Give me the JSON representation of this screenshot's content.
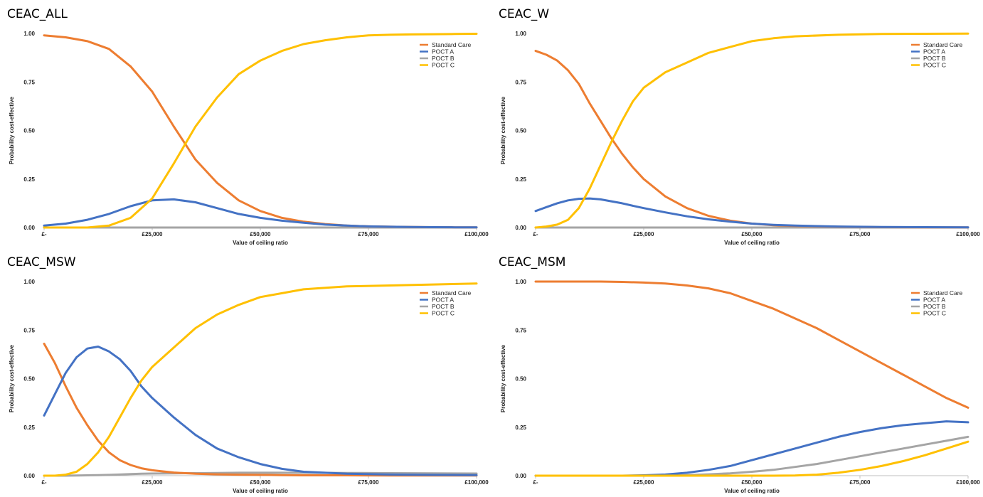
{
  "chart_data": [
    {
      "panel_title": "CEAC_ALL",
      "type": "line",
      "xlabel": "Value of ceiling ratio",
      "ylabel": "Probability cost-effective",
      "xlim": [
        0,
        100000
      ],
      "ylim": [
        0,
        1
      ],
      "x_tick_values": [
        0,
        25000,
        50000,
        75000,
        100000
      ],
      "x_tick_labels": [
        "£-",
        "£25,000",
        "£50,000",
        "£75,000",
        "£100,000"
      ],
      "y_tick_values": [
        0,
        0.25,
        0.5,
        0.75,
        1
      ],
      "y_tick_labels": [
        "0.00",
        "0.25",
        "0.50",
        "0.75",
        "1.00"
      ],
      "legend_position": "top-right",
      "x": [
        0,
        5000,
        10000,
        15000,
        20000,
        25000,
        30000,
        35000,
        40000,
        45000,
        50000,
        55000,
        60000,
        65000,
        70000,
        75000,
        80000,
        85000,
        90000,
        95000,
        100000
      ],
      "series": [
        {
          "name": "Standard Care",
          "color": "#ED7D31",
          "values": [
            0.99,
            0.98,
            0.96,
            0.92,
            0.83,
            0.7,
            0.52,
            0.35,
            0.23,
            0.14,
            0.085,
            0.05,
            0.03,
            0.018,
            0.01,
            0.006,
            0.004,
            0.003,
            0.002,
            0.001,
            0.001
          ]
        },
        {
          "name": "POCT A",
          "color": "#4472C4",
          "values": [
            0.01,
            0.02,
            0.04,
            0.07,
            0.11,
            0.14,
            0.145,
            0.13,
            0.1,
            0.07,
            0.05,
            0.035,
            0.025,
            0.015,
            0.01,
            0.006,
            0.004,
            0.003,
            0.002,
            0.001,
            0.001
          ]
        },
        {
          "name": "POCT B",
          "color": "#A5A5A5",
          "values": [
            0,
            0,
            0,
            0,
            0,
            0,
            0,
            0,
            0,
            0,
            0,
            0,
            0,
            0,
            0,
            0,
            0,
            0,
            0,
            0,
            0
          ]
        },
        {
          "name": "POCT C",
          "color": "#FFC000",
          "values": [
            0,
            0,
            0,
            0.01,
            0.05,
            0.15,
            0.33,
            0.52,
            0.67,
            0.79,
            0.86,
            0.91,
            0.945,
            0.965,
            0.98,
            0.99,
            0.993,
            0.995,
            0.996,
            0.997,
            0.998
          ]
        }
      ]
    },
    {
      "panel_title": "CEAC_W",
      "type": "line",
      "xlabel": "Value of ceiling ratio",
      "ylabel": "Probability cost-effective",
      "xlim": [
        0,
        100000
      ],
      "ylim": [
        0,
        1
      ],
      "x_tick_values": [
        0,
        25000,
        50000,
        75000,
        100000
      ],
      "x_tick_labels": [
        "£-",
        "£25,000",
        "£50,000",
        "£75,000",
        "£100,000"
      ],
      "y_tick_values": [
        0,
        0.25,
        0.5,
        0.75,
        1
      ],
      "y_tick_labels": [
        "0.00",
        "0.25",
        "0.50",
        "0.75",
        "1.00"
      ],
      "legend_position": "top-right",
      "x": [
        0,
        2500,
        5000,
        7500,
        10000,
        12500,
        15000,
        17500,
        20000,
        22500,
        25000,
        30000,
        35000,
        40000,
        45000,
        50000,
        55000,
        60000,
        70000,
        80000,
        90000,
        100000
      ],
      "series": [
        {
          "name": "Standard Care",
          "color": "#ED7D31",
          "values": [
            0.91,
            0.89,
            0.86,
            0.81,
            0.74,
            0.64,
            0.55,
            0.46,
            0.38,
            0.31,
            0.25,
            0.16,
            0.1,
            0.06,
            0.035,
            0.02,
            0.012,
            0.008,
            0.004,
            0.002,
            0.001,
            0.001
          ]
        },
        {
          "name": "POCT A",
          "color": "#4472C4",
          "values": [
            0.085,
            0.105,
            0.125,
            0.14,
            0.148,
            0.15,
            0.145,
            0.135,
            0.125,
            0.112,
            0.1,
            0.078,
            0.058,
            0.042,
            0.03,
            0.02,
            0.014,
            0.01,
            0.005,
            0.003,
            0.002,
            0.001
          ]
        },
        {
          "name": "POCT B",
          "color": "#A5A5A5",
          "values": [
            0,
            0,
            0,
            0,
            0,
            0,
            0,
            0,
            0,
            0,
            0,
            0,
            0,
            0,
            0,
            0,
            0,
            0,
            0,
            0,
            0,
            0
          ]
        },
        {
          "name": "POCT C",
          "color": "#FFC000",
          "values": [
            0,
            0.005,
            0.015,
            0.04,
            0.1,
            0.2,
            0.32,
            0.44,
            0.55,
            0.65,
            0.72,
            0.8,
            0.85,
            0.9,
            0.93,
            0.96,
            0.975,
            0.985,
            0.993,
            0.997,
            0.998,
            0.999
          ]
        }
      ]
    },
    {
      "panel_title": "CEAC_MSW",
      "type": "line",
      "xlabel": "Value of ceiling ratio",
      "ylabel": "Probability cost-effective",
      "xlim": [
        0,
        100000
      ],
      "ylim": [
        0,
        1
      ],
      "x_tick_values": [
        0,
        25000,
        50000,
        75000,
        100000
      ],
      "x_tick_labels": [
        "£-",
        "£25,000",
        "£50,000",
        "£75,000",
        "£100,000"
      ],
      "y_tick_values": [
        0,
        0.25,
        0.5,
        0.75,
        1
      ],
      "y_tick_labels": [
        "0.00",
        "0.25",
        "0.50",
        "0.75",
        "1.00"
      ],
      "legend_position": "top-right",
      "x": [
        0,
        2500,
        5000,
        7500,
        10000,
        12500,
        15000,
        17500,
        20000,
        22500,
        25000,
        30000,
        35000,
        40000,
        45000,
        50000,
        55000,
        60000,
        70000,
        80000,
        90000,
        100000
      ],
      "series": [
        {
          "name": "Standard Care",
          "color": "#ED7D31",
          "values": [
            0.68,
            0.58,
            0.46,
            0.35,
            0.26,
            0.18,
            0.12,
            0.08,
            0.055,
            0.038,
            0.028,
            0.016,
            0.01,
            0.007,
            0.005,
            0.004,
            0.003,
            0.002,
            0.002,
            0.001,
            0.001,
            0.001
          ]
        },
        {
          "name": "POCT A",
          "color": "#4472C4",
          "values": [
            0.31,
            0.42,
            0.53,
            0.61,
            0.655,
            0.665,
            0.64,
            0.6,
            0.54,
            0.46,
            0.4,
            0.3,
            0.21,
            0.14,
            0.095,
            0.06,
            0.035,
            0.02,
            0.01,
            0.006,
            0.004,
            0.003
          ]
        },
        {
          "name": "POCT B",
          "color": "#A5A5A5",
          "values": [
            0,
            0,
            0,
            0.001,
            0.002,
            0.003,
            0.004,
            0.006,
            0.008,
            0.01,
            0.011,
            0.012,
            0.013,
            0.014,
            0.015,
            0.015,
            0.015,
            0.015,
            0.014,
            0.013,
            0.012,
            0.011
          ]
        },
        {
          "name": "POCT C",
          "color": "#FFC000",
          "values": [
            0,
            0,
            0.005,
            0.02,
            0.06,
            0.12,
            0.2,
            0.3,
            0.4,
            0.49,
            0.56,
            0.66,
            0.76,
            0.83,
            0.88,
            0.92,
            0.94,
            0.96,
            0.975,
            0.98,
            0.985,
            0.99
          ]
        }
      ]
    },
    {
      "panel_title": "CEAC_MSM",
      "type": "line",
      "xlabel": "Value of ceiling ratio",
      "ylabel": "Probability cost-effective",
      "xlim": [
        0,
        100000
      ],
      "ylim": [
        0,
        1
      ],
      "x_tick_values": [
        0,
        25000,
        50000,
        75000,
        100000
      ],
      "x_tick_labels": [
        "£-",
        "£25,000",
        "£50,000",
        "£75,000",
        "£100,000"
      ],
      "y_tick_values": [
        0,
        0.25,
        0.5,
        0.75,
        1
      ],
      "y_tick_labels": [
        "0.00",
        "0.25",
        "0.50",
        "0.75",
        "1.00"
      ],
      "legend_position": "top-right",
      "x": [
        0,
        5000,
        10000,
        15000,
        20000,
        25000,
        30000,
        35000,
        40000,
        45000,
        50000,
        55000,
        60000,
        65000,
        70000,
        75000,
        80000,
        85000,
        90000,
        95000,
        100000
      ],
      "series": [
        {
          "name": "Standard Care",
          "color": "#ED7D31",
          "values": [
            1.0,
            1.0,
            1.0,
            1.0,
            0.998,
            0.995,
            0.99,
            0.98,
            0.965,
            0.94,
            0.9,
            0.86,
            0.81,
            0.76,
            0.7,
            0.64,
            0.58,
            0.52,
            0.46,
            0.4,
            0.35
          ]
        },
        {
          "name": "POCT A",
          "color": "#4472C4",
          "values": [
            0,
            0,
            0,
            0,
            0,
            0.002,
            0.006,
            0.015,
            0.03,
            0.05,
            0.08,
            0.11,
            0.14,
            0.17,
            0.2,
            0.225,
            0.245,
            0.26,
            0.27,
            0.28,
            0.275
          ]
        },
        {
          "name": "POCT B",
          "color": "#A5A5A5",
          "values": [
            0,
            0,
            0,
            0,
            0,
            0,
            0.001,
            0.003,
            0.007,
            0.012,
            0.02,
            0.03,
            0.045,
            0.06,
            0.08,
            0.1,
            0.12,
            0.14,
            0.16,
            0.18,
            0.2
          ]
        },
        {
          "name": "POCT C",
          "color": "#FFC000",
          "values": [
            0,
            0,
            0,
            0,
            0,
            0,
            0,
            0,
            0,
            0,
            0,
            0,
            0.001,
            0.005,
            0.015,
            0.03,
            0.05,
            0.075,
            0.105,
            0.14,
            0.175
          ]
        }
      ]
    }
  ]
}
